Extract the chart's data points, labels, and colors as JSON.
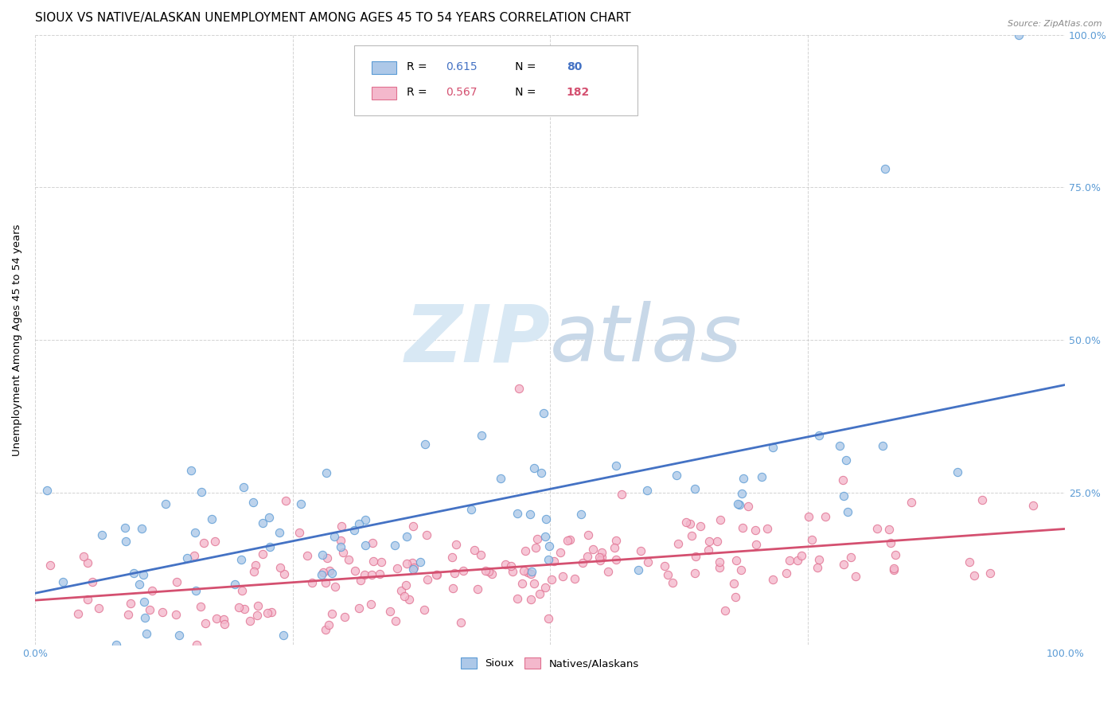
{
  "title": "SIOUX VS NATIVE/ALASKAN UNEMPLOYMENT AMONG AGES 45 TO 54 YEARS CORRELATION CHART",
  "source": "Source: ZipAtlas.com",
  "ylabel": "Unemployment Among Ages 45 to 54 years",
  "sioux_R": 0.615,
  "sioux_N": 80,
  "native_R": 0.567,
  "native_N": 182,
  "sioux_color": "#adc8e8",
  "sioux_edge_color": "#5b9bd5",
  "sioux_line_color": "#4472c4",
  "native_color": "#f4b8cc",
  "native_edge_color": "#e07090",
  "native_line_color": "#d45070",
  "tick_label_color": "#5b9bd5",
  "background_color": "#ffffff",
  "grid_color": "#c8c8c8",
  "watermark_color": "#d8e8f4",
  "xlim": [
    0,
    1
  ],
  "ylim": [
    0,
    1
  ],
  "xticks": [
    0,
    0.25,
    0.5,
    0.75,
    1.0
  ],
  "yticks": [
    0,
    0.25,
    0.5,
    0.75,
    1.0
  ],
  "xticklabels": [
    "0.0%",
    "",
    "",
    "",
    "100.0%"
  ],
  "right_yticklabels": [
    "",
    "25.0%",
    "50.0%",
    "75.0%",
    "100.0%"
  ],
  "title_fontsize": 11,
  "source_fontsize": 8,
  "legend_fontsize": 10
}
